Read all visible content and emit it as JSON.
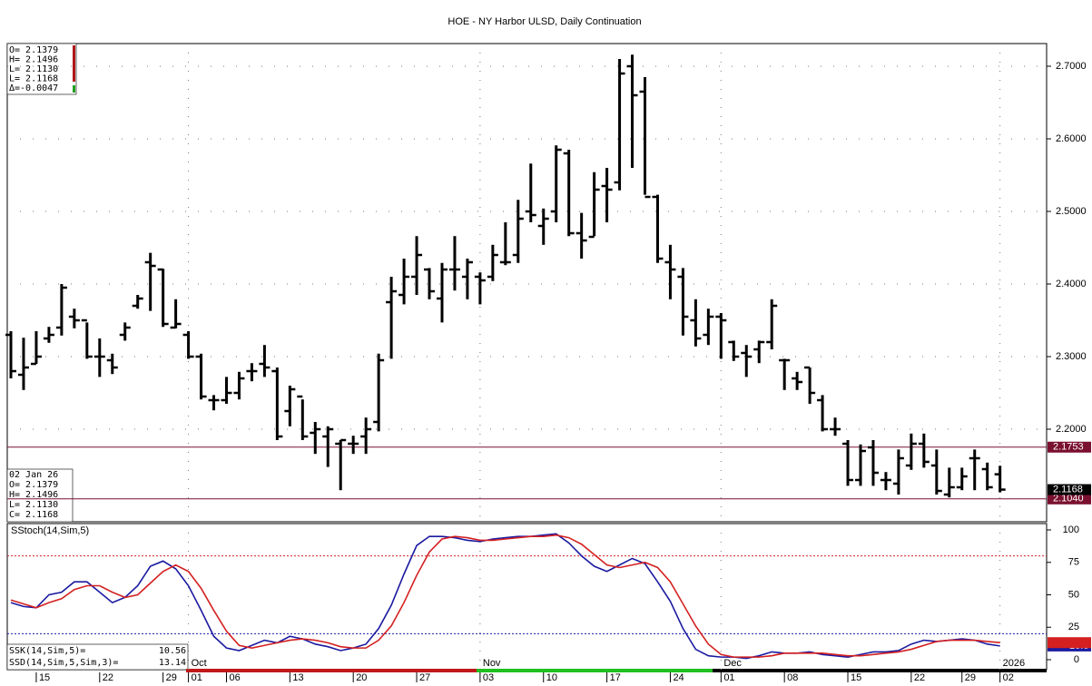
{
  "chart_data": [
    {
      "type": "ohlc",
      "title": "HOE - NY Harbor ULSD, Daily Continuation",
      "info_top": [
        "O= 2.1379",
        "H= 2.1496",
        "L= 2.1130",
        "L= 2.1168",
        "Δ=-0.0047"
      ],
      "info_bottom": [
        "02 Jan 26",
        "O= 2.1379",
        "H= 2.1496",
        "L= 2.1130",
        "C= 2.1168"
      ],
      "categories": [
        null,
        null,
        "15",
        null,
        null,
        null,
        null,
        "22",
        null,
        null,
        null,
        null,
        "29",
        null,
        "01",
        null,
        null,
        "06",
        null,
        null,
        null,
        null,
        "13",
        null,
        null,
        null,
        null,
        "20",
        null,
        null,
        null,
        null,
        "27",
        null,
        null,
        null,
        null,
        "03",
        null,
        null,
        null,
        null,
        "10",
        null,
        null,
        null,
        null,
        "17",
        null,
        null,
        null,
        null,
        "24",
        null,
        null,
        null,
        "01",
        null,
        null,
        null,
        null,
        "08",
        null,
        null,
        null,
        null,
        "15",
        null,
        null,
        null,
        null,
        "22",
        null,
        null,
        null,
        "29",
        null,
        null,
        "02"
      ],
      "months": [
        null,
        null,
        null,
        null,
        null,
        null,
        null,
        null,
        null,
        null,
        null,
        null,
        null,
        null,
        "Oct",
        null,
        null,
        null,
        null,
        null,
        null,
        null,
        null,
        null,
        null,
        null,
        null,
        null,
        null,
        null,
        null,
        null,
        null,
        null,
        null,
        null,
        null,
        "Nov",
        null,
        null,
        null,
        null,
        null,
        null,
        null,
        null,
        null,
        null,
        null,
        null,
        null,
        null,
        null,
        null,
        null,
        null,
        "Dec",
        null,
        null,
        null,
        null,
        null,
        null,
        null,
        null,
        null,
        null,
        null,
        null,
        null,
        null,
        null,
        null,
        null,
        null,
        null,
        null,
        null,
        "2026"
      ],
      "open": [
        2.33,
        2.275,
        2.29,
        2.325,
        2.34,
        2.355,
        2.35,
        2.3,
        2.295,
        2.33,
        2.37,
        2.43,
        2.42,
        2.34,
        2.33,
        2.3,
        2.24,
        2.24,
        2.25,
        2.28,
        2.29,
        2.28,
        2.225,
        2.245,
        2.195,
        2.19,
        2.18,
        2.18,
        2.19,
        2.21,
        2.375,
        2.385,
        2.41,
        2.42,
        2.38,
        2.42,
        2.41,
        2.41,
        2.41,
        2.43,
        2.44,
        2.5,
        2.48,
        2.5,
        2.58,
        2.47,
        2.465,
        2.535,
        2.54,
        2.7,
        2.665,
        2.52,
        2.43,
        2.41,
        2.35,
        2.33,
        2.355,
        2.32,
        2.305,
        2.31,
        2.32,
        2.295,
        2.27,
        2.285,
        2.24,
        2.2,
        2.18,
        2.13,
        2.175,
        2.13,
        2.125,
        2.15,
        2.18,
        2.15,
        2.11,
        2.12,
        2.16,
        2.145,
        2.1379
      ],
      "high": [
        2.335,
        2.326,
        2.335,
        2.341,
        2.4,
        2.366,
        2.347,
        2.325,
        2.304,
        2.347,
        2.385,
        2.443,
        2.421,
        2.379,
        2.335,
        2.304,
        2.247,
        2.272,
        2.279,
        2.291,
        2.316,
        2.285,
        2.26,
        2.241,
        2.21,
        2.204,
        2.185,
        2.191,
        2.216,
        2.304,
        2.41,
        2.435,
        2.466,
        2.422,
        2.429,
        2.466,
        2.435,
        2.416,
        2.454,
        2.485,
        2.516,
        2.566,
        2.504,
        2.591,
        2.585,
        2.498,
        2.554,
        2.56,
        2.71,
        2.716,
        2.685,
        2.523,
        2.454,
        2.422,
        2.379,
        2.366,
        2.36,
        2.322,
        2.316,
        2.322,
        2.379,
        2.297,
        2.279,
        2.285,
        2.247,
        2.216,
        2.185,
        2.179,
        2.185,
        2.141,
        2.172,
        2.194,
        2.194,
        2.172,
        2.147,
        2.147,
        2.172,
        2.154,
        2.1496
      ],
      "low": [
        2.27,
        2.254,
        2.29,
        2.319,
        2.329,
        2.339,
        2.297,
        2.272,
        2.276,
        2.322,
        2.366,
        2.363,
        2.341,
        2.339,
        2.297,
        2.241,
        2.226,
        2.235,
        2.241,
        2.266,
        2.272,
        2.185,
        2.204,
        2.185,
        2.166,
        2.148,
        2.116,
        2.166,
        2.166,
        2.197,
        2.297,
        2.372,
        2.385,
        2.379,
        2.347,
        2.391,
        2.379,
        2.372,
        2.404,
        2.426,
        2.429,
        2.485,
        2.454,
        2.485,
        2.466,
        2.435,
        2.466,
        2.485,
        2.529,
        2.56,
        2.523,
        2.429,
        2.379,
        2.329,
        2.314,
        2.316,
        2.297,
        2.294,
        2.272,
        2.291,
        2.31,
        2.254,
        2.254,
        2.235,
        2.197,
        2.191,
        2.122,
        2.122,
        2.122,
        2.116,
        2.11,
        2.144,
        2.147,
        2.11,
        2.106,
        2.116,
        2.116,
        2.116,
        2.113
      ],
      "close": [
        2.28,
        2.285,
        2.3,
        2.33,
        2.395,
        2.35,
        2.3,
        2.3,
        2.285,
        2.34,
        2.38,
        2.425,
        2.345,
        2.345,
        2.3,
        2.245,
        2.24,
        2.25,
        2.27,
        2.28,
        2.285,
        2.19,
        2.255,
        2.19,
        2.2,
        2.2,
        2.185,
        2.18,
        2.2,
        2.295,
        2.39,
        2.41,
        2.44,
        2.39,
        2.42,
        2.42,
        2.43,
        2.405,
        2.44,
        2.43,
        2.49,
        2.495,
        2.49,
        2.585,
        2.47,
        2.46,
        2.53,
        2.53,
        2.69,
        2.66,
        2.52,
        2.435,
        2.42,
        2.355,
        2.325,
        2.355,
        2.35,
        2.3,
        2.3,
        2.32,
        2.37,
        2.295,
        2.265,
        2.25,
        2.2,
        2.2,
        2.13,
        2.17,
        2.14,
        2.13,
        2.16,
        2.18,
        2.155,
        2.115,
        2.12,
        2.135,
        2.16,
        2.12,
        2.1168
      ],
      "last_label": "2.1168",
      "color": "#000000",
      "ylim": [
        2.0725,
        2.73125
      ],
      "yticks": [
        {
          "value": 2.2,
          "label": "2.2000"
        },
        {
          "value": 2.3,
          "label": "2.3000"
        },
        {
          "value": 2.4,
          "label": "2.4000"
        },
        {
          "value": 2.5,
          "label": "2.5000"
        },
        {
          "value": 2.6,
          "label": "2.6000"
        },
        {
          "value": 2.7,
          "label": "2.7000"
        }
      ],
      "grid": true,
      "reference_lines": [
        {
          "value": 2.1753,
          "color": "#7a1030"
        },
        {
          "value": 2.104,
          "label": "2.1040",
          "color": "#7a1030"
        }
      ]
    },
    {
      "type": "line",
      "title": "SStoch(14,Sim,5)",
      "series": [
        {
          "name": "SSK(14,Sim,5)=",
          "current_label": "10.56",
          "last_label": "10.6",
          "color": "#1a1aa0",
          "values": [
            44,
            41,
            40,
            50,
            52,
            60,
            60,
            52,
            44,
            48,
            57,
            72,
            76,
            70,
            57,
            38,
            18,
            9,
            7,
            11,
            15,
            13,
            18,
            16,
            12,
            10,
            7,
            9,
            12,
            24,
            42,
            66,
            88,
            95,
            95,
            94,
            92,
            91,
            93,
            94,
            95,
            95,
            96,
            97,
            90,
            80,
            72,
            68,
            73,
            78,
            74,
            60,
            45,
            24,
            8,
            3,
            2,
            2,
            1,
            3,
            6,
            5,
            5,
            6,
            4,
            3,
            2,
            4,
            6,
            6,
            7,
            12,
            15,
            14,
            15,
            16,
            15,
            12,
            10.56
          ]
        },
        {
          "name": "SSD(14,Sim,5,Sim,3)=",
          "current_label": "13.14",
          "color": "#d42020",
          "values": [
            46,
            43,
            40,
            44,
            47,
            54,
            57,
            57,
            52,
            48,
            50,
            59,
            68,
            73,
            68,
            55,
            38,
            22,
            11,
            9,
            11,
            13,
            15,
            16,
            15,
            13,
            10,
            9,
            9,
            15,
            26,
            44,
            65,
            83,
            93,
            95,
            94,
            92,
            92,
            93,
            94,
            95,
            95,
            96,
            94,
            89,
            81,
            73,
            71,
            73,
            75,
            71,
            60,
            43,
            26,
            12,
            4,
            2,
            2,
            2,
            3,
            5,
            5,
            5,
            5,
            4,
            3,
            3,
            4,
            5,
            6,
            8,
            11,
            14,
            15,
            15,
            15,
            14,
            13.14
          ]
        }
      ],
      "ylim": [
        -7.7,
        104.9
      ],
      "yticks": [
        0,
        25,
        50,
        75,
        100
      ],
      "grid": false,
      "reference_lines": [
        {
          "value": 80,
          "color": "#d42020"
        },
        {
          "value": 20,
          "color": "#1a1aa0"
        }
      ]
    }
  ]
}
